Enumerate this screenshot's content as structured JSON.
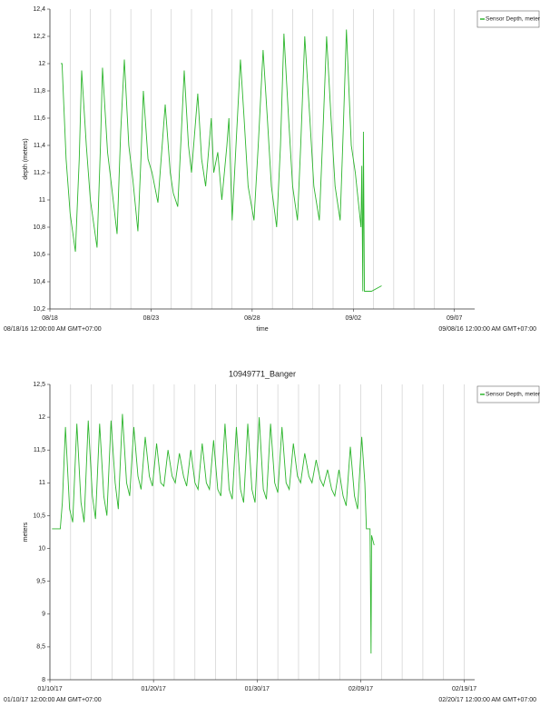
{
  "chart_data": [
    {
      "type": "line",
      "y_label": "depth (meters)",
      "x_label": "time",
      "x_start_label": "08/18/16 12:00:00 AM GMT+07:00",
      "x_end_label": "09/08/16 12:00:00 AM GMT+07:00",
      "xlim": [
        0,
        21
      ],
      "xticks": [
        {
          "value": 0,
          "label": "08/18"
        },
        {
          "value": 5,
          "label": "08/23"
        },
        {
          "value": 10,
          "label": "08/28"
        },
        {
          "value": 15,
          "label": "09/02"
        },
        {
          "value": 20,
          "label": "09/07"
        }
      ],
      "xgrid": [
        1,
        2,
        3,
        4,
        5,
        6,
        7,
        8,
        9,
        10,
        11,
        12,
        13,
        14,
        15,
        16,
        17,
        18,
        19,
        20
      ],
      "ylim": [
        10.2,
        12.4
      ],
      "yticks": [
        {
          "value": 10.2,
          "label": "10,2"
        },
        {
          "value": 10.4,
          "label": "10,4"
        },
        {
          "value": 10.6,
          "label": "10,6"
        },
        {
          "value": 10.8,
          "label": "10,8"
        },
        {
          "value": 11,
          "label": "11"
        },
        {
          "value": 11.2,
          "label": "11,2"
        },
        {
          "value": 11.4,
          "label": "11,4"
        },
        {
          "value": 11.6,
          "label": "11,6"
        },
        {
          "value": 11.8,
          "label": "11,8"
        },
        {
          "value": 12,
          "label": "12"
        },
        {
          "value": 12.2,
          "label": "12,2"
        },
        {
          "value": 12.4,
          "label": "12,4"
        }
      ],
      "legend": "right",
      "x": [
        0.54,
        0.6,
        0.8,
        1.0,
        1.26,
        1.45,
        1.57,
        1.8,
        2.0,
        2.33,
        2.5,
        2.6,
        2.85,
        3.05,
        3.32,
        3.5,
        3.68,
        3.9,
        4.1,
        4.35,
        4.5,
        4.62,
        4.85,
        5.05,
        5.34,
        5.5,
        5.7,
        5.95,
        6.1,
        6.32,
        6.5,
        6.64,
        6.85,
        7.0,
        7.31,
        7.5,
        7.7,
        7.98,
        8.1,
        8.3,
        8.5,
        8.75,
        8.85,
        9.01,
        9.2,
        9.42,
        9.6,
        9.8,
        10.09,
        10.3,
        10.54,
        10.75,
        10.95,
        11.21,
        11.4,
        11.57,
        11.8,
        12.0,
        12.24,
        12.4,
        12.6,
        12.85,
        13.05,
        13.32,
        13.5,
        13.68,
        13.9,
        14.1,
        14.35,
        14.5,
        14.66,
        14.9,
        15.1,
        15.38,
        15.42,
        15.47,
        15.5,
        15.55,
        15.6,
        15.9,
        16.4
      ],
      "series": [
        {
          "name": "Sensor Depth, meters",
          "color": "#2db52d",
          "values": [
            12.0,
            12.0,
            11.3,
            10.9,
            10.62,
            11.3,
            11.95,
            11.4,
            11.0,
            10.65,
            11.4,
            11.97,
            11.35,
            11.1,
            10.75,
            11.5,
            12.03,
            11.4,
            11.15,
            10.77,
            11.3,
            11.8,
            11.3,
            11.2,
            10.98,
            11.3,
            11.7,
            11.2,
            11.05,
            10.95,
            11.5,
            11.95,
            11.4,
            11.2,
            11.78,
            11.3,
            11.1,
            11.6,
            11.2,
            11.35,
            11.0,
            11.4,
            11.6,
            10.85,
            11.4,
            12.03,
            11.6,
            11.1,
            10.85,
            11.4,
            12.1,
            11.6,
            11.1,
            10.8,
            11.4,
            12.22,
            11.6,
            11.1,
            10.85,
            11.4,
            12.2,
            11.6,
            11.1,
            10.85,
            11.5,
            12.2,
            11.6,
            11.1,
            10.85,
            11.5,
            12.25,
            11.4,
            11.2,
            10.8,
            11.25,
            10.33,
            11.5,
            10.33,
            10.33,
            10.33,
            10.37
          ]
        }
      ]
    },
    {
      "type": "line",
      "title": "10949771_Banger",
      "y_label": "meters",
      "x_start_label": "01/10/17 12:00:00 AM GMT+07:00",
      "x_end_label": "02/20/17 12:00:00 AM GMT+07:00",
      "xlim": [
        0,
        41
      ],
      "xticks": [
        {
          "value": 0,
          "label": "01/10/17"
        },
        {
          "value": 10,
          "label": "01/20/17"
        },
        {
          "value": 20,
          "label": "01/30/17"
        },
        {
          "value": 30,
          "label": "02/09/17"
        },
        {
          "value": 40,
          "label": "02/19/17"
        }
      ],
      "xgrid": [
        2,
        4,
        6,
        8,
        10,
        12,
        14,
        16,
        18,
        20,
        22,
        24,
        26,
        28,
        30,
        32,
        34,
        36,
        38,
        40
      ],
      "ylim": [
        8,
        12.5
      ],
      "yticks": [
        8,
        {
          "value": 8.5,
          "label": "8,5"
        },
        9,
        {
          "value": 9.5,
          "label": "9,5"
        },
        10,
        {
          "value": 10.5,
          "label": "10,5"
        },
        11,
        {
          "value": 11.5,
          "label": "11,5"
        },
        12,
        {
          "value": 12.5,
          "label": "12,5"
        }
      ],
      "legend": "right",
      "x": [
        0.2,
        1.0,
        1.2,
        1.5,
        1.9,
        2.2,
        2.6,
        3.0,
        3.3,
        3.7,
        4.1,
        4.4,
        4.8,
        5.2,
        5.5,
        5.9,
        6.3,
        6.6,
        7.0,
        7.4,
        7.7,
        8.1,
        8.5,
        8.8,
        9.2,
        9.6,
        9.9,
        10.3,
        10.7,
        11.0,
        11.4,
        11.8,
        12.1,
        12.5,
        12.9,
        13.2,
        13.6,
        14.0,
        14.3,
        14.7,
        15.1,
        15.4,
        15.8,
        16.2,
        16.5,
        16.9,
        17.3,
        17.6,
        18.0,
        18.4,
        18.7,
        19.1,
        19.5,
        19.8,
        20.2,
        20.6,
        20.9,
        21.3,
        21.7,
        22.0,
        22.4,
        22.8,
        23.1,
        23.5,
        23.9,
        24.2,
        24.6,
        25.0,
        25.3,
        25.7,
        26.1,
        26.4,
        26.8,
        27.2,
        27.5,
        27.9,
        28.3,
        28.6,
        29.0,
        29.4,
        29.7,
        30.1,
        30.4,
        30.55,
        30.9,
        31.0,
        31.05,
        31.3
      ],
      "series": [
        {
          "name": "Sensor Depth, meters",
          "color": "#2db52d",
          "values": [
            10.3,
            10.3,
            10.7,
            11.85,
            10.6,
            10.4,
            11.9,
            10.7,
            10.4,
            11.95,
            10.8,
            10.45,
            11.9,
            10.8,
            10.5,
            11.95,
            11.0,
            10.6,
            12.05,
            11.0,
            10.8,
            11.85,
            11.1,
            10.9,
            11.7,
            11.1,
            10.95,
            11.6,
            11.0,
            10.95,
            11.5,
            11.1,
            11.0,
            11.45,
            11.1,
            10.95,
            11.5,
            11.0,
            10.9,
            11.6,
            11.0,
            10.9,
            11.65,
            10.9,
            10.8,
            11.9,
            10.9,
            10.75,
            11.85,
            10.9,
            10.7,
            11.9,
            10.9,
            10.7,
            12.0,
            10.9,
            10.75,
            11.9,
            11.0,
            10.85,
            11.85,
            11.0,
            10.9,
            11.6,
            11.1,
            11.0,
            11.45,
            11.1,
            11.0,
            11.35,
            11.05,
            10.95,
            11.2,
            10.9,
            10.8,
            11.2,
            10.8,
            10.65,
            11.55,
            10.8,
            10.6,
            11.7,
            11.0,
            10.3,
            10.3,
            8.4,
            10.2,
            10.05
          ]
        }
      ]
    }
  ]
}
